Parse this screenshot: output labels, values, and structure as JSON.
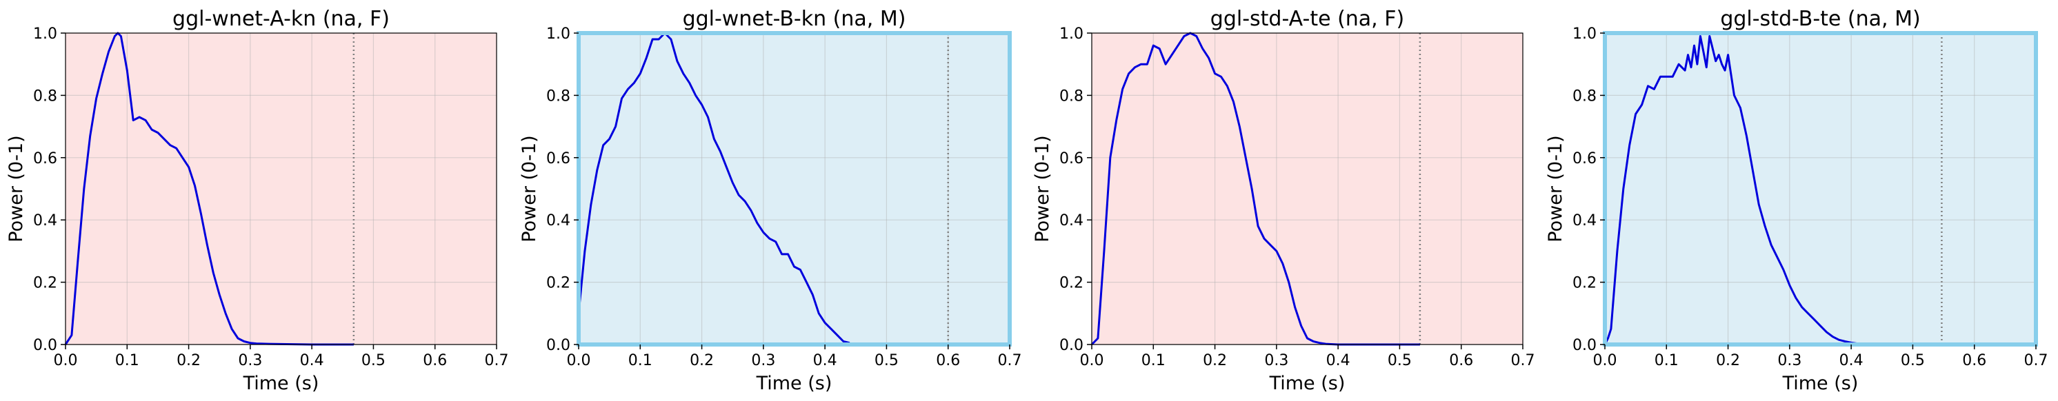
{
  "chart_data": [
    {
      "type": "line",
      "title": "ggl-wnet-A-kn (na, F)",
      "xlabel": "Time (s)",
      "ylabel": "Power (0-1)",
      "xlim": [
        0.0,
        0.7
      ],
      "ylim": [
        0.0,
        1.0
      ],
      "xticks": [
        "0.0",
        "0.1",
        "0.2",
        "0.3",
        "0.4",
        "0.5",
        "0.6",
        "0.7"
      ],
      "yticks": [
        "0.0",
        "0.2",
        "0.4",
        "0.6",
        "0.8",
        "1.0"
      ],
      "grid": true,
      "background": "#fde3e3",
      "line_color": "#0000dd",
      "end_marker_x": 0.468,
      "highlighted": false,
      "x": [
        0.0,
        0.01,
        0.02,
        0.03,
        0.04,
        0.05,
        0.06,
        0.07,
        0.08,
        0.085,
        0.09,
        0.1,
        0.11,
        0.12,
        0.13,
        0.14,
        0.15,
        0.16,
        0.17,
        0.18,
        0.19,
        0.2,
        0.21,
        0.22,
        0.23,
        0.24,
        0.25,
        0.26,
        0.27,
        0.28,
        0.29,
        0.3,
        0.31,
        0.33,
        0.36,
        0.4,
        0.44,
        0.468
      ],
      "y": [
        0.0,
        0.03,
        0.27,
        0.5,
        0.67,
        0.79,
        0.87,
        0.94,
        0.99,
        1.0,
        0.99,
        0.88,
        0.72,
        0.73,
        0.72,
        0.69,
        0.68,
        0.66,
        0.64,
        0.63,
        0.6,
        0.57,
        0.51,
        0.42,
        0.32,
        0.23,
        0.16,
        0.1,
        0.05,
        0.02,
        0.01,
        0.005,
        0.003,
        0.002,
        0.001,
        0.0,
        0.0,
        0.0
      ]
    },
    {
      "type": "line",
      "title": "ggl-wnet-B-kn (na, M)",
      "xlabel": "Time (s)",
      "ylabel": "Power (0-1)",
      "xlim": [
        0.0,
        0.7
      ],
      "ylim": [
        0.0,
        1.0
      ],
      "xticks": [
        "0.0",
        "0.1",
        "0.2",
        "0.3",
        "0.4",
        "0.5",
        "0.6",
        "0.7"
      ],
      "yticks": [
        "0.0",
        "0.2",
        "0.4",
        "0.6",
        "0.8",
        "1.0"
      ],
      "grid": true,
      "background": "#ddeef6",
      "line_color": "#0000dd",
      "end_marker_x": 0.6,
      "highlighted": true,
      "highlight_color": "#87ceeb",
      "x": [
        0.0,
        0.01,
        0.02,
        0.03,
        0.04,
        0.05,
        0.06,
        0.07,
        0.08,
        0.09,
        0.1,
        0.11,
        0.12,
        0.13,
        0.14,
        0.15,
        0.16,
        0.17,
        0.18,
        0.19,
        0.2,
        0.21,
        0.22,
        0.23,
        0.24,
        0.25,
        0.26,
        0.27,
        0.28,
        0.29,
        0.3,
        0.31,
        0.32,
        0.33,
        0.34,
        0.35,
        0.36,
        0.37,
        0.38,
        0.39,
        0.4,
        0.41,
        0.42,
        0.43,
        0.44
      ],
      "y": [
        0.1,
        0.3,
        0.45,
        0.56,
        0.64,
        0.66,
        0.7,
        0.79,
        0.82,
        0.84,
        0.87,
        0.92,
        0.98,
        0.98,
        1.0,
        0.98,
        0.91,
        0.87,
        0.84,
        0.8,
        0.77,
        0.73,
        0.66,
        0.62,
        0.57,
        0.52,
        0.48,
        0.46,
        0.43,
        0.39,
        0.36,
        0.34,
        0.33,
        0.29,
        0.29,
        0.25,
        0.24,
        0.2,
        0.16,
        0.1,
        0.07,
        0.05,
        0.03,
        0.01,
        0.005
      ]
    },
    {
      "type": "line",
      "title": "ggl-std-A-te (na, F)",
      "xlabel": "Time (s)",
      "ylabel": "Power (0-1)",
      "xlim": [
        0.0,
        0.7
      ],
      "ylim": [
        0.0,
        1.0
      ],
      "xticks": [
        "0.0",
        "0.1",
        "0.2",
        "0.3",
        "0.4",
        "0.5",
        "0.6",
        "0.7"
      ],
      "yticks": [
        "0.0",
        "0.2",
        "0.4",
        "0.6",
        "0.8",
        "1.0"
      ],
      "grid": true,
      "background": "#fde3e3",
      "line_color": "#0000dd",
      "end_marker_x": 0.533,
      "highlighted": false,
      "x": [
        0.0,
        0.01,
        0.02,
        0.03,
        0.04,
        0.05,
        0.06,
        0.07,
        0.08,
        0.09,
        0.1,
        0.11,
        0.12,
        0.13,
        0.14,
        0.15,
        0.16,
        0.17,
        0.18,
        0.19,
        0.2,
        0.21,
        0.22,
        0.23,
        0.24,
        0.25,
        0.26,
        0.27,
        0.28,
        0.29,
        0.3,
        0.31,
        0.32,
        0.33,
        0.34,
        0.35,
        0.36,
        0.37,
        0.38,
        0.4,
        0.45,
        0.5,
        0.533
      ],
      "y": [
        0.0,
        0.02,
        0.3,
        0.6,
        0.72,
        0.82,
        0.87,
        0.89,
        0.9,
        0.9,
        0.96,
        0.95,
        0.9,
        0.93,
        0.96,
        0.99,
        1.0,
        0.99,
        0.95,
        0.92,
        0.87,
        0.86,
        0.83,
        0.78,
        0.7,
        0.6,
        0.5,
        0.38,
        0.34,
        0.32,
        0.3,
        0.26,
        0.2,
        0.12,
        0.06,
        0.02,
        0.01,
        0.005,
        0.002,
        0.0,
        0.0,
        0.0,
        0.0
      ]
    },
    {
      "type": "line",
      "title": "ggl-std-B-te (na, M)",
      "xlabel": "Time (s)",
      "ylabel": "Power (0-1)",
      "xlim": [
        0.0,
        0.7
      ],
      "ylim": [
        0.0,
        1.0
      ],
      "xticks": [
        "0.0",
        "0.1",
        "0.2",
        "0.3",
        "0.4",
        "0.5",
        "0.6",
        "0.7"
      ],
      "yticks": [
        "0.0",
        "0.2",
        "0.4",
        "0.6",
        "0.8",
        "1.0"
      ],
      "grid": true,
      "background": "#ddeef6",
      "line_color": "#0000dd",
      "end_marker_x": 0.547,
      "highlighted": true,
      "highlight_color": "#87ceeb",
      "x": [
        0.0,
        0.005,
        0.01,
        0.02,
        0.03,
        0.04,
        0.05,
        0.06,
        0.07,
        0.08,
        0.09,
        0.1,
        0.11,
        0.12,
        0.13,
        0.135,
        0.14,
        0.145,
        0.15,
        0.155,
        0.16,
        0.165,
        0.17,
        0.175,
        0.18,
        0.185,
        0.19,
        0.195,
        0.2,
        0.21,
        0.22,
        0.23,
        0.24,
        0.25,
        0.26,
        0.27,
        0.28,
        0.29,
        0.3,
        0.31,
        0.32,
        0.33,
        0.34,
        0.35,
        0.36,
        0.37,
        0.38,
        0.39,
        0.4,
        0.41,
        0.42
      ],
      "y": [
        0.0,
        0.02,
        0.05,
        0.3,
        0.5,
        0.64,
        0.74,
        0.77,
        0.83,
        0.82,
        0.86,
        0.86,
        0.86,
        0.9,
        0.88,
        0.93,
        0.89,
        0.96,
        0.9,
        0.99,
        0.94,
        0.89,
        0.99,
        0.95,
        0.91,
        0.93,
        0.9,
        0.88,
        0.93,
        0.8,
        0.76,
        0.67,
        0.56,
        0.45,
        0.38,
        0.32,
        0.28,
        0.24,
        0.19,
        0.15,
        0.12,
        0.1,
        0.08,
        0.06,
        0.04,
        0.025,
        0.015,
        0.01,
        0.006,
        0.003,
        0.002
      ]
    }
  ]
}
